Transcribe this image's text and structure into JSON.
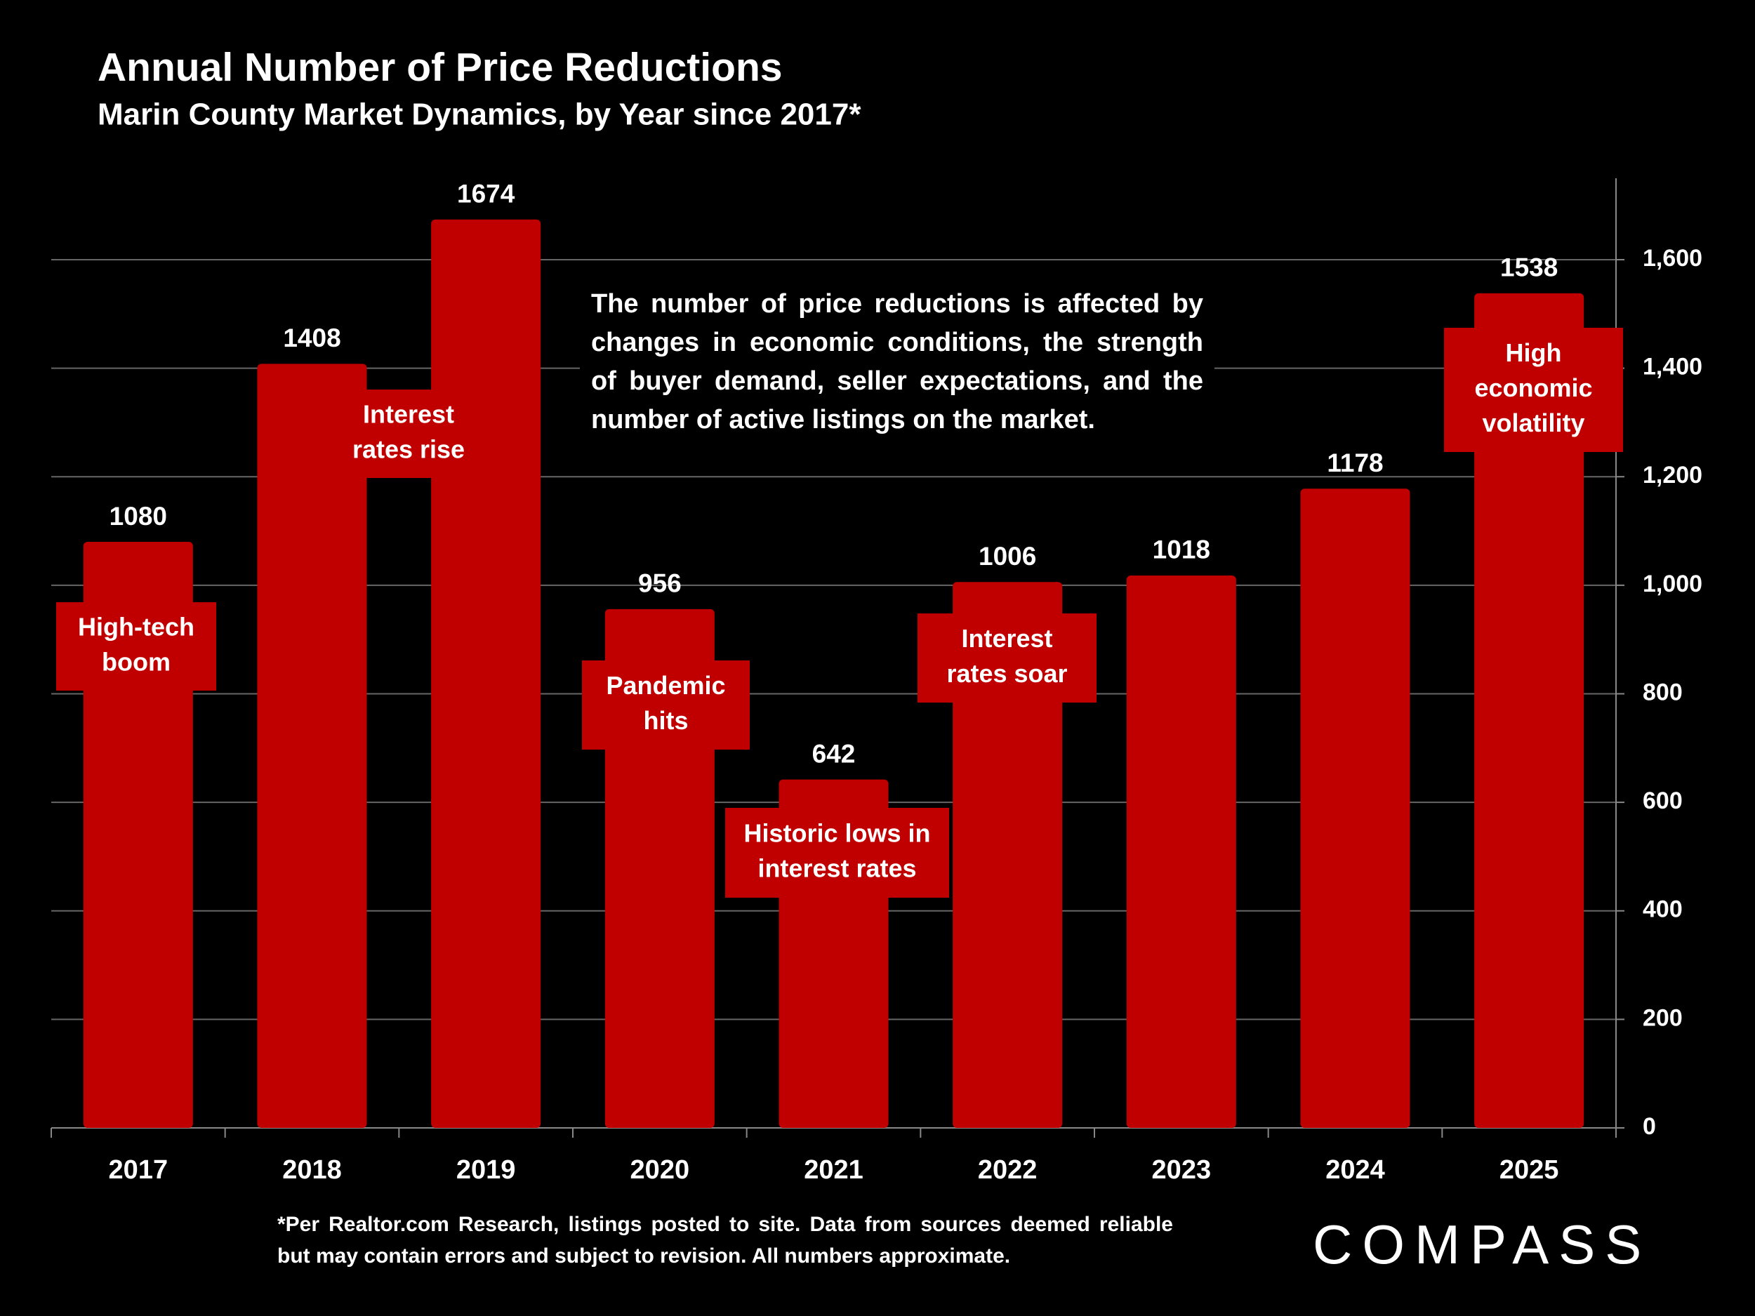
{
  "chart_data": {
    "type": "bar",
    "title": "Annual Number of Price Reductions",
    "subtitle": "Marin County Market Dynamics, by Year since 2017*",
    "categories": [
      "2017",
      "2018",
      "2019",
      "2020",
      "2021",
      "2022",
      "2023",
      "2024",
      "2025"
    ],
    "values": [
      1080,
      1408,
      1674,
      956,
      642,
      1006,
      1018,
      1178,
      1538
    ],
    "color": "#c00000",
    "ylim": [
      0,
      1750
    ],
    "yticks": [
      0,
      200,
      400,
      600,
      800,
      {
        "value": 1000,
        "label": "1,000"
      },
      {
        "value": 1200,
        "label": "1,200"
      },
      {
        "value": 1400,
        "label": "1,400"
      },
      {
        "value": 1600,
        "label": "1,600"
      }
    ],
    "y_axis_side": "right",
    "grid": true,
    "annotations": [
      {
        "lines": [
          "High-tech",
          "boom"
        ]
      },
      {
        "lines": [
          "Interest",
          "rates rise"
        ]
      },
      {
        "lines": [
          "Pandemic",
          "hits"
        ]
      },
      {
        "lines": [
          "Historic lows in",
          "interest rates"
        ]
      },
      {
        "lines": [
          "Interest",
          "rates soar"
        ]
      },
      {
        "lines": [
          "High",
          "economic",
          "volatility"
        ]
      }
    ],
    "note": "The number of price reductions is affected by changes in economic conditions, the strength of buyer demand, seller expectations, and the number of active listings on the market.",
    "footnote": "*Per Realtor.com Research, listings posted to site. Data from sources deemed reliable but may contain errors and subject to revision. All numbers approximate.",
    "logo": "COMPASS"
  }
}
